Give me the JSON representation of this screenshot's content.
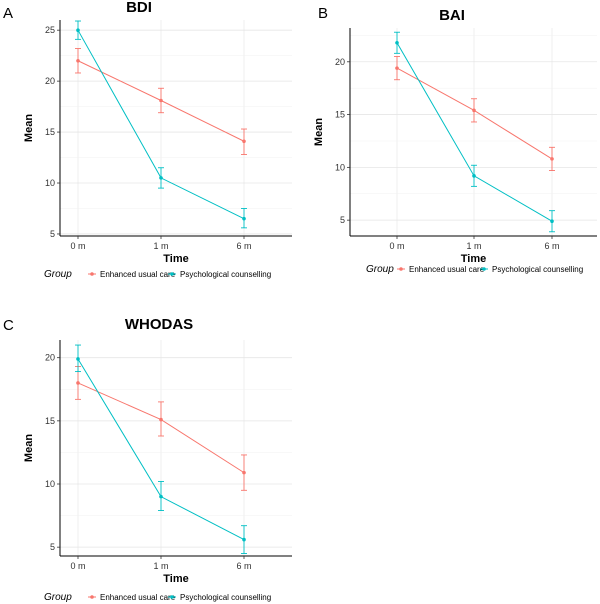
{
  "chart_data": [
    {
      "panel": "A",
      "type": "line",
      "title": "BDI",
      "xlabel": "Time",
      "ylabel": "Mean",
      "categories": [
        "0 m",
        "1 m",
        "6 m"
      ],
      "ylim": [
        4.8,
        26
      ],
      "yticks": [
        5,
        10,
        15,
        20,
        25
      ],
      "grid": true,
      "legend_title": "Group",
      "legend_position": "bottom",
      "series": [
        {
          "name": "Enhanced usual care",
          "color": "#f8766d",
          "values": [
            22.0,
            18.1,
            14.1
          ],
          "err_low": [
            20.8,
            16.9,
            12.8
          ],
          "err_high": [
            23.2,
            19.3,
            15.3
          ]
        },
        {
          "name": "Psychological counselling",
          "color": "#00bfc4",
          "values": [
            25.0,
            10.5,
            6.5
          ],
          "err_low": [
            24.1,
            9.5,
            5.6
          ],
          "err_high": [
            25.9,
            11.5,
            7.5
          ]
        }
      ]
    },
    {
      "panel": "B",
      "type": "line",
      "title": "BAI",
      "xlabel": "Time",
      "ylabel": "Mean",
      "categories": [
        "0 m",
        "1 m",
        "6 m"
      ],
      "ylim": [
        3.5,
        23.2
      ],
      "yticks": [
        5,
        10,
        15,
        20
      ],
      "grid": true,
      "legend_title": "Group",
      "legend_position": "bottom",
      "series": [
        {
          "name": "Enhanced usual care",
          "color": "#f8766d",
          "values": [
            19.4,
            15.4,
            10.8
          ],
          "err_low": [
            18.3,
            14.3,
            9.7
          ],
          "err_high": [
            20.5,
            16.5,
            11.9
          ]
        },
        {
          "name": "Psychological counselling",
          "color": "#00bfc4",
          "values": [
            21.8,
            9.2,
            4.9
          ],
          "err_low": [
            20.8,
            8.2,
            3.9
          ],
          "err_high": [
            22.8,
            10.2,
            5.9
          ]
        }
      ]
    },
    {
      "panel": "C",
      "type": "line",
      "title": "WHODAS",
      "xlabel": "Time",
      "ylabel": "Mean",
      "categories": [
        "0 m",
        "1 m",
        "6 m"
      ],
      "ylim": [
        4.3,
        21.4
      ],
      "yticks": [
        5,
        10,
        15,
        20
      ],
      "grid": true,
      "legend_title": "Group",
      "legend_position": "bottom",
      "series": [
        {
          "name": "Enhanced usual care",
          "color": "#f8766d",
          "values": [
            18.0,
            15.1,
            10.9
          ],
          "err_low": [
            16.7,
            13.8,
            9.5
          ],
          "err_high": [
            19.3,
            16.5,
            12.3
          ]
        },
        {
          "name": "Psychological counselling",
          "color": "#00bfc4",
          "values": [
            19.9,
            9.0,
            5.6
          ],
          "err_low": [
            18.9,
            7.9,
            4.5
          ],
          "err_high": [
            21.0,
            10.2,
            6.7
          ]
        }
      ]
    }
  ]
}
